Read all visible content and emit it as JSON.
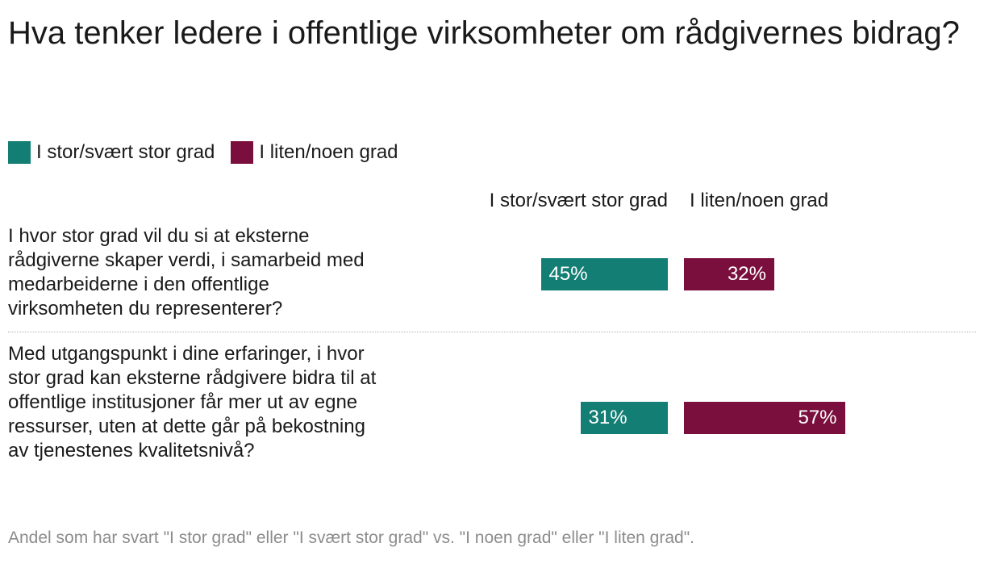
{
  "title": "Hva tenker ledere i offentlige virksomheter om rådgivernes bidrag?",
  "legend": {
    "items": [
      {
        "label": "I stor/svært stor grad",
        "color": "#137e74"
      },
      {
        "label": "I liten/noen grad",
        "color": "#7a0f3e"
      }
    ]
  },
  "columns": {
    "left": "I stor/svært stor grad",
    "right": "I liten/noen grad"
  },
  "footnote": "Andel som har svart \"I stor grad\" eller \"I svært stor grad\" vs. \"I noen grad\" eller \"I liten grad\".",
  "chart_data": {
    "type": "bar",
    "categories": [
      "I hvor stor grad vil du si at eksterne rådgiverne skaper verdi, i samarbeid med medarbeiderne i den offentlige virksomheten du representerer?",
      "Med utgangspunkt i dine erfaringer, i hvor stor grad kan eksterne rådgivere bidra til at offentlige institusjoner får mer ut av egne ressurser, uten at dette går på bekostning av tjenestenes kvalitetsnivå?"
    ],
    "series": [
      {
        "name": "I stor/svært stor grad",
        "color": "#137e74",
        "values": [
          45,
          31
        ],
        "labels": [
          "45%",
          "31%"
        ]
      },
      {
        "name": "I liten/noen grad",
        "color": "#7a0f3e",
        "values": [
          32,
          57
        ],
        "labels": [
          "32%",
          "57%"
        ]
      }
    ],
    "unit": "%"
  }
}
